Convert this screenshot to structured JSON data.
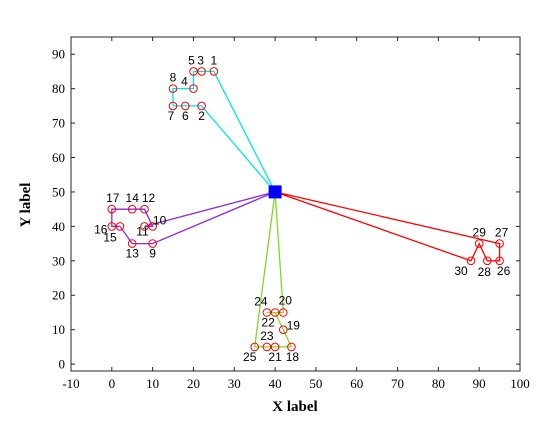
{
  "chart_data": {
    "type": "scatter",
    "title": "",
    "xlabel": "X label",
    "ylabel": "Y label",
    "xlim": [
      -10,
      100
    ],
    "ylim": [
      -2,
      95
    ],
    "xticks": [
      -10,
      0,
      10,
      20,
      30,
      40,
      50,
      60,
      70,
      80,
      90,
      100
    ],
    "yticks": [
      0,
      10,
      20,
      30,
      40,
      50,
      60,
      70,
      80,
      90
    ],
    "grid": false,
    "legend": "none",
    "depot": {
      "x": 40,
      "y": 50,
      "color": "#0000ff"
    },
    "points": [
      {
        "id": "1",
        "x": 25,
        "y": 85
      },
      {
        "id": "2",
        "x": 22,
        "y": 75
      },
      {
        "id": "3",
        "x": 22,
        "y": 85
      },
      {
        "id": "4",
        "x": 20,
        "y": 80
      },
      {
        "id": "5",
        "x": 20,
        "y": 85
      },
      {
        "id": "6",
        "x": 18,
        "y": 75
      },
      {
        "id": "7",
        "x": 15,
        "y": 75
      },
      {
        "id": "8",
        "x": 15,
        "y": 80
      },
      {
        "id": "9",
        "x": 10,
        "y": 35
      },
      {
        "id": "10",
        "x": 10,
        "y": 40
      },
      {
        "id": "11",
        "x": 8,
        "y": 40
      },
      {
        "id": "12",
        "x": 8,
        "y": 45
      },
      {
        "id": "13",
        "x": 5,
        "y": 35
      },
      {
        "id": "14",
        "x": 5,
        "y": 45
      },
      {
        "id": "15",
        "x": 2,
        "y": 40
      },
      {
        "id": "16",
        "x": 0,
        "y": 40
      },
      {
        "id": "17",
        "x": 0,
        "y": 45
      },
      {
        "id": "18",
        "x": 44,
        "y": 5
      },
      {
        "id": "19",
        "x": 42,
        "y": 10
      },
      {
        "id": "20",
        "x": 42,
        "y": 15
      },
      {
        "id": "21",
        "x": 40,
        "y": 5
      },
      {
        "id": "22",
        "x": 40,
        "y": 15
      },
      {
        "id": "23",
        "x": 38,
        "y": 5
      },
      {
        "id": "24",
        "x": 38,
        "y": 15
      },
      {
        "id": "25",
        "x": 35,
        "y": 5
      },
      {
        "id": "26",
        "x": 95,
        "y": 30
      },
      {
        "id": "27",
        "x": 95,
        "y": 35
      },
      {
        "id": "28",
        "x": 92,
        "y": 30
      },
      {
        "id": "29",
        "x": 90,
        "y": 35
      },
      {
        "id": "30",
        "x": 88,
        "y": 30
      }
    ],
    "routes": [
      {
        "color": "#00e5ee",
        "stops": [
          "1",
          "3",
          "5",
          "4",
          "8",
          "7",
          "6",
          "2"
        ]
      },
      {
        "color": "#8a2be2",
        "stops": [
          "9",
          "13",
          "15",
          "16",
          "17",
          "14",
          "12",
          "10",
          "11"
        ]
      },
      {
        "color": "#7fd921",
        "stops": [
          "20",
          "24",
          "22",
          "19",
          "18",
          "21",
          "23",
          "25"
        ]
      },
      {
        "color": "#ff0000",
        "stops": [
          "27",
          "26",
          "28",
          "29",
          "30"
        ]
      }
    ]
  }
}
